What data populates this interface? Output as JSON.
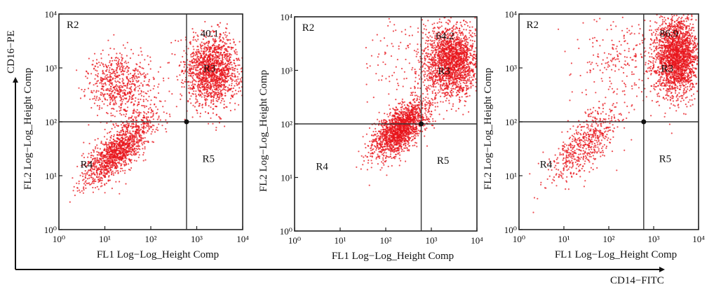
{
  "figure": {
    "y_arrow_label": "CD16−PE",
    "x_arrow_label": "CD14−FITC",
    "dot_color": "#e8141b"
  },
  "chart_data": [
    {
      "type": "scatter",
      "scale": "log",
      "xlim": [
        1,
        10000
      ],
      "ylim": [
        1,
        10000
      ],
      "xlabel": "FL1 Log−Log_Height Comp",
      "ylabel": "FL2 Log−Log_Height Comp",
      "x_ticks": [
        "10⁰",
        "10¹",
        "10²",
        "10³",
        "10⁴"
      ],
      "y_ticks": [
        "10⁰",
        "10¹",
        "10²",
        "10³",
        "10⁴"
      ],
      "gates": {
        "x": 600,
        "y": 100
      },
      "regions": [
        {
          "name": "R2",
          "x": 2,
          "y": 5500
        },
        {
          "name": "R3",
          "x": 1900,
          "y": 850
        },
        {
          "name": "R4",
          "x": 4,
          "y": 14
        },
        {
          "name": "R5",
          "x": 1800,
          "y": 18
        }
      ],
      "percent_label": "40.1",
      "percent_pos": {
        "x": 1900,
        "y": 3800
      },
      "populations": [
        {
          "name": "R3",
          "center": [
            2200,
            900
          ],
          "spread": [
            0.3,
            0.33
          ],
          "count": 1500
        },
        {
          "name": "R2",
          "center": [
            20,
            500
          ],
          "spread": [
            0.35,
            0.28
          ],
          "count": 650
        },
        {
          "name": "R4",
          "center": [
            20,
            30
          ],
          "spread": [
            0.38,
            0.32
          ],
          "count": 1350,
          "corr": 0.75
        }
      ]
    },
    {
      "type": "scatter",
      "scale": "log",
      "xlim": [
        1,
        10000
      ],
      "ylim": [
        1,
        10000
      ],
      "xlabel": "FL1 Log−Log_Height Comp",
      "ylabel": "FL2 Log−Log_Height Comp",
      "x_ticks": [
        "10⁰",
        "10¹",
        "10²",
        "10³",
        "10⁴"
      ],
      "y_ticks": [
        "10⁰",
        "10¹",
        "10²",
        "10³",
        "10⁴"
      ],
      "gates": {
        "x": 600,
        "y": 100
      },
      "regions": [
        {
          "name": "R2",
          "x": 2,
          "y": 5500
        },
        {
          "name": "R3",
          "x": 1900,
          "y": 850
        },
        {
          "name": "R4",
          "x": 4,
          "y": 14
        },
        {
          "name": "R5",
          "x": 1800,
          "y": 18
        }
      ],
      "percent_label": "64.2",
      "percent_pos": {
        "x": 2000,
        "y": 3800
      },
      "populations": [
        {
          "name": "R3",
          "center": [
            2800,
            1500
          ],
          "spread": [
            0.3,
            0.33
          ],
          "count": 1900
        },
        {
          "name": "R4",
          "center": [
            200,
            80
          ],
          "spread": [
            0.3,
            0.26
          ],
          "count": 1700,
          "corr": 0.6
        },
        {
          "name": "R2",
          "center": [
            300,
            1500
          ],
          "spread": [
            0.55,
            0.4
          ],
          "count": 120
        }
      ]
    },
    {
      "type": "scatter",
      "scale": "log",
      "xlim": [
        1,
        10000
      ],
      "ylim": [
        1,
        10000
      ],
      "xlabel": "FL1 Log−Log_Height Comp",
      "ylabel": "FL2 Log−Log_Height Comp",
      "x_ticks": [
        "10⁰",
        "10¹",
        "10²",
        "10³",
        "10⁴"
      ],
      "y_ticks": [
        "10⁰",
        "10¹",
        "10²",
        "10³",
        "10⁴"
      ],
      "gates": {
        "x": 600,
        "y": 100
      },
      "regions": [
        {
          "name": "R2",
          "x": 2,
          "y": 5500
        },
        {
          "name": "R3",
          "x": 2000,
          "y": 850
        },
        {
          "name": "R4",
          "x": 4,
          "y": 14
        },
        {
          "name": "R5",
          "x": 1800,
          "y": 18
        }
      ],
      "percent_label": "86.9",
      "percent_pos": {
        "x": 2200,
        "y": 3800
      },
      "populations": [
        {
          "name": "R3",
          "center": [
            3200,
            1600
          ],
          "spread": [
            0.26,
            0.38
          ],
          "count": 2100
        },
        {
          "name": "R4",
          "center": [
            30,
            40
          ],
          "spread": [
            0.4,
            0.35
          ],
          "count": 600,
          "corr": 0.7
        },
        {
          "name": "R2",
          "center": [
            150,
            1500
          ],
          "spread": [
            0.5,
            0.4
          ],
          "count": 200
        }
      ]
    }
  ]
}
